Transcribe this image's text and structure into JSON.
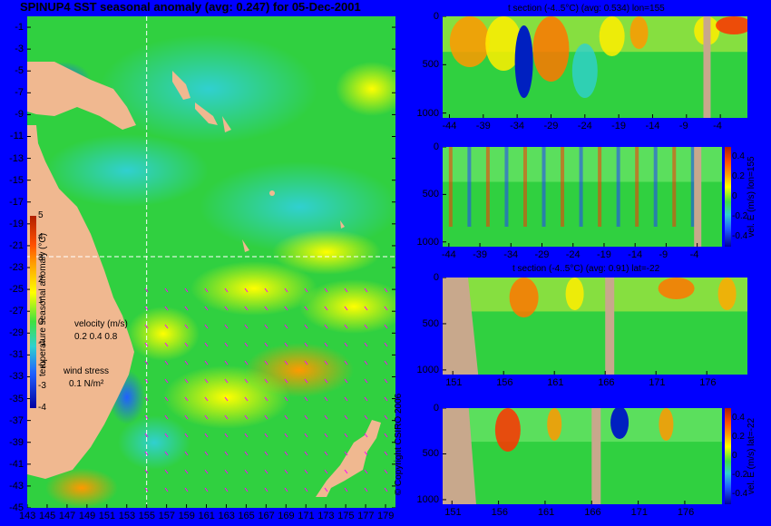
{
  "main_title": "SPINUP4 SST seasonal anomaly (avg: 0.247) for 05-Dec-2001",
  "copyright": "© Copyright CSIRO 2006",
  "colors": {
    "background": "#0000ff",
    "land": "#f0b890",
    "section_land": "#c8a88c",
    "crosshair": "#ffffff",
    "wind_vectors": "#ff00ff"
  },
  "chart_data": [
    {
      "type": "heatmap",
      "id": "map",
      "title": "SPINUP4 SST seasonal anomaly (avg: 0.247) for 05-Dec-2001",
      "x_ticks": [
        "143",
        "145",
        "147",
        "149",
        "151",
        "153",
        "155",
        "157",
        "159",
        "161",
        "163",
        "165",
        "167",
        "169",
        "171",
        "173",
        "175",
        "177",
        "179"
      ],
      "y_ticks": [
        "-1",
        "-3",
        "-5",
        "-7",
        "-9",
        "-11",
        "-13",
        "-15",
        "-17",
        "-19",
        "-21",
        "-23",
        "-25",
        "-27",
        "-29",
        "-31",
        "-33",
        "-35",
        "-37",
        "-39",
        "-41",
        "-43",
        "-45"
      ],
      "xlim": [
        143,
        180
      ],
      "ylim": [
        -45,
        0
      ],
      "crosshair": {
        "lon": 155,
        "lat": -22
      },
      "colorbar": {
        "label": "temperature seasonal anomaly (°C)",
        "ticks": [
          "5",
          "4",
          "3",
          "2",
          "1",
          "0",
          "-1",
          "-2",
          "-3",
          "-4"
        ],
        "range": [
          -4,
          5
        ]
      },
      "velocity_legend": {
        "title": "velocity (m/s)",
        "values": "0.2 0.4 0.8"
      },
      "wind_legend": {
        "title": "wind stress",
        "value": "0.1 N/m²"
      }
    },
    {
      "type": "heatmap",
      "id": "panel1",
      "title": "t section (-4..5°C) (avg: 0.534) lon=155",
      "x_ticks": [
        "-44",
        "-39",
        "-34",
        "-29",
        "-24",
        "-19",
        "-14",
        "-9",
        "-4"
      ],
      "xlim": [
        -45,
        0
      ],
      "y_ticks": [
        "0",
        "500",
        "1000"
      ],
      "ylim": [
        1050,
        0
      ]
    },
    {
      "type": "heatmap",
      "id": "panel2",
      "title": "",
      "x_ticks": [
        "-44",
        "-39",
        "-34",
        "-29",
        "-24",
        "-19",
        "-14",
        "-9",
        "-4"
      ],
      "xlim": [
        -45,
        0
      ],
      "y_ticks": [
        "0",
        "500",
        "1000"
      ],
      "ylim": [
        1050,
        0
      ],
      "colorbar": {
        "label": "vel. E (m/s) lon=155",
        "ticks": [
          "0.4",
          "0.2",
          "0",
          "-0.2",
          "-0.4"
        ],
        "range": [
          -0.5,
          0.5
        ]
      }
    },
    {
      "type": "heatmap",
      "id": "panel3",
      "title": "t section (-4..5°C) (avg: 0.91) lat=-22",
      "x_ticks": [
        "151",
        "156",
        "161",
        "166",
        "171",
        "176"
      ],
      "xlim": [
        150,
        180
      ],
      "y_ticks": [
        "0",
        "500",
        "1000"
      ],
      "ylim": [
        1050,
        0
      ]
    },
    {
      "type": "heatmap",
      "id": "panel4",
      "title": "",
      "x_ticks": [
        "151",
        "156",
        "161",
        "166",
        "171",
        "176"
      ],
      "xlim": [
        150,
        180
      ],
      "y_ticks": [
        "0",
        "500",
        "1000"
      ],
      "ylim": [
        1050,
        0
      ],
      "colorbar": {
        "label": "vel. E (m/s) lat=-22",
        "ticks": [
          "0.4",
          "0.2",
          "0",
          "-0.2",
          "-0.4"
        ],
        "range": [
          -0.5,
          0.5
        ]
      }
    }
  ]
}
